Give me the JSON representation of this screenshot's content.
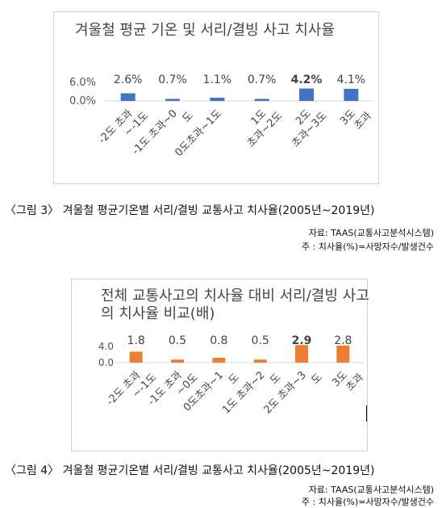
{
  "figure3": {
    "title": "겨울철 평균 기온  및 서리/결빙 사고 치사율",
    "caption": "〈그림 3〉 겨울철 평균기온별 서리/결빙 교통사고 치사율(2005년~2019년)",
    "source": "자료: TAAS(교통사고분석시스템)",
    "note": "주 : 치사율(%)=사망자수/발생건수",
    "chart_data": {
      "type": "bar",
      "categories": [
        "-2도 초과 ~-1도",
        "-1도 초과~0 도",
        "0도초과~1도",
        "1도 초과~2도",
        "2도 초과~3도",
        "3도 초과"
      ],
      "values": [
        2.6,
        0.7,
        1.1,
        0.7,
        4.2,
        4.1
      ],
      "value_labels": [
        "2.6%",
        "0.7%",
        "1.1%",
        "0.7%",
        "4.2%",
        "4.1%"
      ],
      "y_ticks": [
        "6.0%",
        "0.0%"
      ],
      "ylim": [
        0,
        6
      ],
      "color": "#4472c4",
      "grid": false,
      "legend": "none"
    }
  },
  "figure4": {
    "title": "전체 교통사고의 치사율 대비 서리/결빙 사고의  치사율 비교(배)",
    "caption": "〈그림 4〉 겨울철 평균기온별 서리/결빙 교통사고 치사율(2005년~2019년)",
    "source": "자료: TAAS(교통사고분석시스템)",
    "note": "주 : 치사율(%)=사망자수/발생건수",
    "chart_data": {
      "type": "bar",
      "categories": [
        "-2도 초과 ~-1도",
        "-1도 초과 ~0도",
        "0도초과~1 도",
        "1도 초과~2 도",
        "2도 초과~3 도",
        "3도 초과"
      ],
      "values": [
        1.8,
        0.5,
        0.8,
        0.5,
        2.9,
        2.8
      ],
      "value_labels": [
        "1.8",
        "0.5",
        "0.8",
        "0.5",
        "2.9",
        "2.8"
      ],
      "y_ticks": [
        "4.0",
        "0.0"
      ],
      "ylim": [
        0,
        4
      ],
      "color": "#ed7d31",
      "grid": false,
      "legend": "none"
    }
  }
}
